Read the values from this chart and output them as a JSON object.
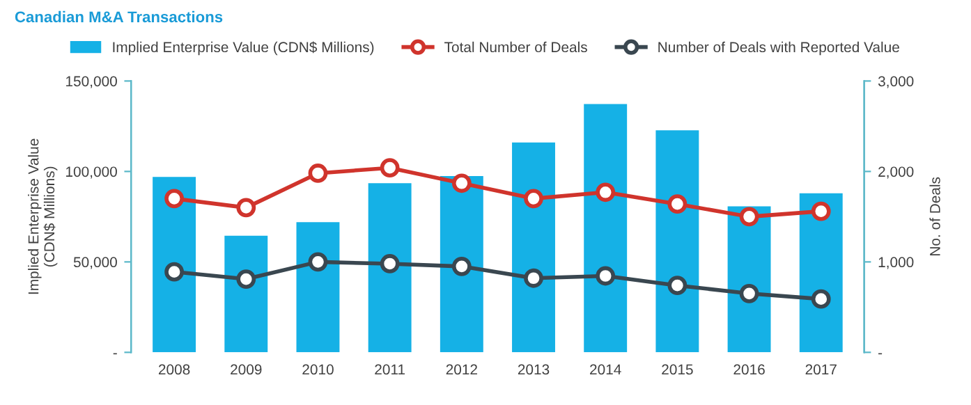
{
  "chart_data": {
    "type": "bar",
    "title": "Canadian M&A Transactions",
    "ylabel": "Implied Enterprise Value\n(CDN$ Millions)",
    "y2label": "No. of Deals",
    "categories": [
      "2008",
      "2009",
      "2010",
      "2011",
      "2012",
      "2013",
      "2014",
      "2015",
      "2016",
      "2017"
    ],
    "series": [
      {
        "name": "Implied Enterprise Value (CDN$ Millions)",
        "color": "#15b1e6",
        "values": [
          97000,
          64500,
          72000,
          93500,
          97500,
          116000,
          137300,
          122700,
          80700,
          87900
        ]
      },
      {
        "name": "Total Number of Deals",
        "type": "line",
        "axis": "y2",
        "color": "#d0342c",
        "marker": "circle",
        "values": [
          1700,
          1600,
          1980,
          2040,
          1870,
          1700,
          1770,
          1640,
          1500,
          1560
        ]
      },
      {
        "name": "Number of Deals with Reported Value",
        "type": "line",
        "axis": "y2",
        "color": "#3a4750",
        "marker": "circle",
        "values": [
          890,
          810,
          1000,
          980,
          950,
          820,
          845,
          740,
          650,
          590
        ]
      }
    ],
    "ylim": [
      0,
      150000
    ],
    "yticks": [
      {
        "value": 0,
        "label": "-"
      },
      {
        "value": 50000,
        "label": "50,000"
      },
      {
        "value": 100000,
        "label": "100,000"
      },
      {
        "value": 150000,
        "label": "150,000"
      }
    ],
    "y2lim": [
      0,
      3000
    ],
    "y2ticks": [
      {
        "value": 0,
        "label": "-"
      },
      {
        "value": 1000,
        "label": "1,000"
      },
      {
        "value": 2000,
        "label": "2,000"
      },
      {
        "value": 3000,
        "label": "3,000"
      }
    ],
    "grid": false,
    "legend": "top"
  }
}
